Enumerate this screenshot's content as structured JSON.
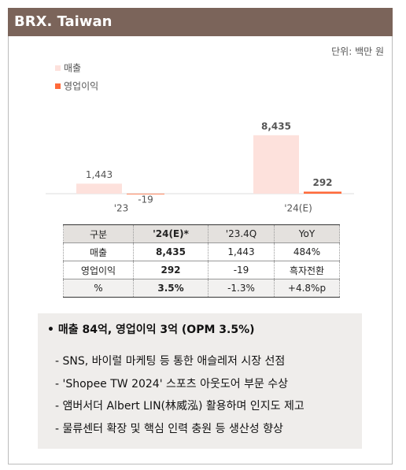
{
  "header": {
    "title": "BRX. Taiwan"
  },
  "chart_data": {
    "type": "bar",
    "unit": "단위: 백만 원",
    "categories": [
      "'23",
      "'24(E)"
    ],
    "series": [
      {
        "name": "매출",
        "color": "#fde1dc",
        "values": [
          1443,
          8435
        ],
        "value_labels": [
          "1,443",
          "8,435"
        ]
      },
      {
        "name": "영업이익",
        "color": "#ff6a3a",
        "values": [
          -19,
          292
        ],
        "value_labels": [
          "-19",
          "292"
        ]
      }
    ],
    "ylim": [
      0,
      10000
    ]
  },
  "table": {
    "header": [
      "구분",
      "'24(E)*",
      "'23.4Q",
      "YoY"
    ],
    "rows": [
      [
        "매출",
        "8,435",
        "1,443",
        "484%"
      ],
      [
        "영업이익",
        "292",
        "-19",
        "흑자전환"
      ],
      [
        "%",
        "3.5%",
        "-1.3%",
        "+4.8%p"
      ]
    ]
  },
  "notes": {
    "headline": "• 매출 84억, 영업이익 3억 (OPM 3.5%)",
    "items": [
      "- SNS, 바이럴 마케팅 등 통한 애슬레저 시장 선점",
      "- 'Shopee TW 2024' 스포츠 아웃도어 부문 수상",
      "- 앰버서더 Albert LIN(林威泓) 활용하며 인지도 제고",
      "- 물류센터 확장 및 핵심 인력 충원 등 생산성 향상"
    ]
  }
}
